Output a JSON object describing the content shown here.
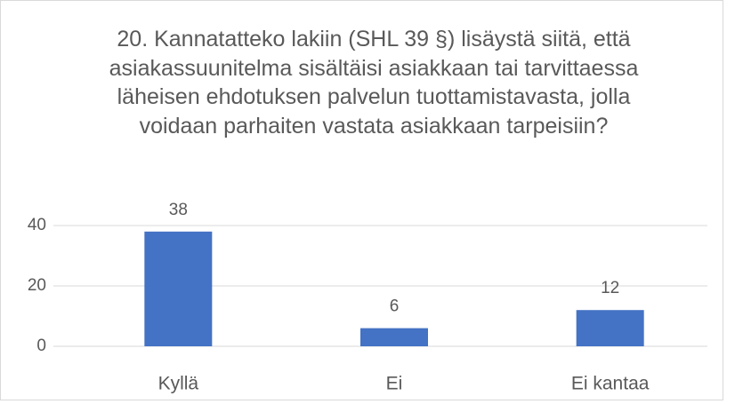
{
  "chart_data": {
    "type": "bar",
    "title": "20. Kannatatteko lakiin (SHL 39 §) lisäystä siitä, että asiakassuunitelma sisältäisi asiakkaan tai tarvittaessa läheisen ehdotuksen palvelun tuottamistavasta, jolla voidaan parhaiten vastata asiakkaan tarpeisiin?",
    "categories": [
      "Kyllä",
      "Ei",
      "Ei kantaa"
    ],
    "values": [
      38,
      6,
      12
    ],
    "color": "#4472c4",
    "ylim": [
      0,
      40
    ],
    "yticks": [
      0,
      20,
      40
    ],
    "grid": true
  }
}
